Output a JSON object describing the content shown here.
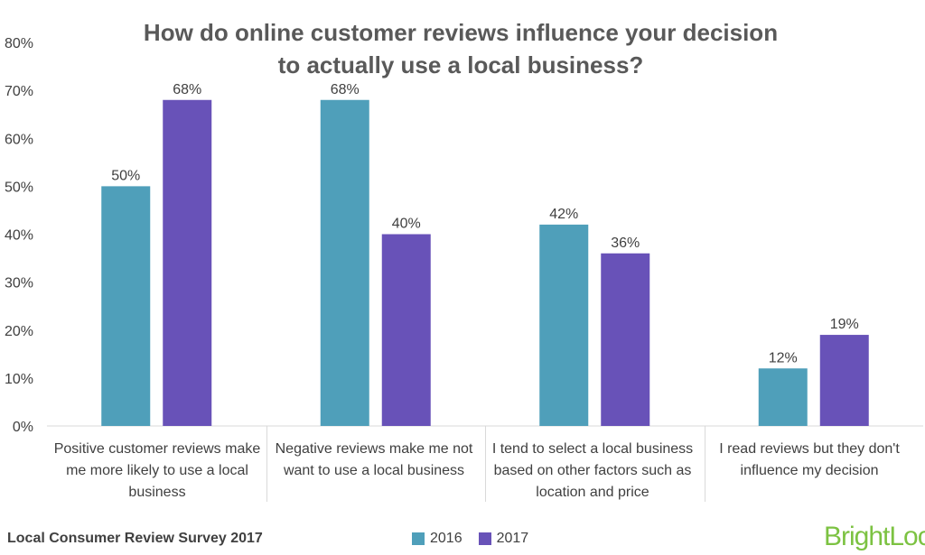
{
  "chart_data": {
    "type": "bar",
    "title": "How do online customer reviews influence your decision to actually use a local business?",
    "categories": [
      "Positive customer reviews make me more likely to use a local business",
      "Negative reviews make me not want to use a local business",
      "I tend to select a local business based on other factors such as location and price",
      "I read reviews but they don't influence my decision"
    ],
    "series": [
      {
        "name": "2016",
        "values": [
          50,
          68,
          42,
          12
        ],
        "labels": [
          "50%",
          "68%",
          "42%",
          "12%"
        ],
        "color": "#4f9fba"
      },
      {
        "name": "2017",
        "values": [
          68,
          40,
          36,
          19
        ],
        "labels": [
          "68%",
          "40%",
          "36%",
          "19%"
        ],
        "color": "#6852b8"
      }
    ],
    "ylim": [
      0,
      80
    ],
    "yticks": [
      "0%",
      "10%",
      "20%",
      "30%",
      "40%",
      "50%",
      "60%",
      "70%",
      "80%"
    ],
    "grid": false,
    "legend_position": "bottom"
  },
  "footer": {
    "source": "Local Consumer Review Survey 2017",
    "brand_part1": "Bright",
    "brand_part2": "Local"
  }
}
